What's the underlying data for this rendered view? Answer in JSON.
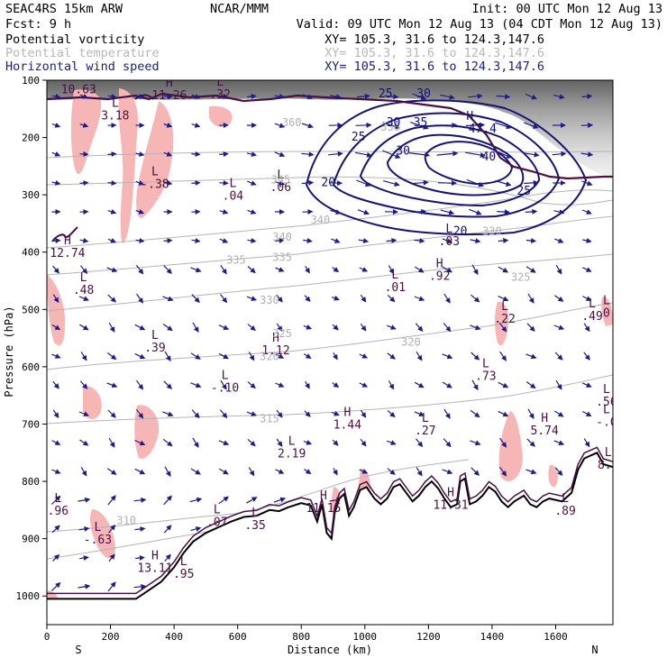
{
  "header": {
    "left_line1": "SEAC4RS 15km ARW",
    "center_line1": "NCAR/MMM",
    "right_line1": "Init: 00 UTC Mon 12 Aug 13",
    "fcst": "Fcst:     9 h",
    "valid": "Valid: 09 UTC Mon 12 Aug 13 (04 CDT Mon 12 Aug 13)",
    "fields": [
      {
        "name": "Potential vorticity",
        "xy": "XY= 105.3, 31.6 to 124.3,147.6"
      },
      {
        "name": "Potential temperature",
        "xy": "XY= 105.3, 31.6 to 124.3,147.6"
      },
      {
        "name": "Horizontal wind speed",
        "xy": "XY= 105.3, 31.6 to 124.3,147.6"
      }
    ]
  },
  "colors": {
    "pv_fill": "#f7b6b6",
    "pv_line": "#4a0f45",
    "theta": "#b4b4b4",
    "wind_contour": "#141478",
    "arrow": "#1c1c8c",
    "terrain": "#000000",
    "stratosphere_shade": "#7a7a7a"
  },
  "chart_data": {
    "type": "cross-section",
    "xlabel": "Distance (km)",
    "ylabel": "Pressure (hPa)",
    "xlim": [
      0,
      1780
    ],
    "ylim_hpa": [
      1050,
      100
    ],
    "x_ticks": [
      "0",
      "200",
      "400",
      "600",
      "800",
      "1000",
      "1200",
      "1400",
      "1600"
    ],
    "x_tick_values": [
      0,
      200,
      400,
      600,
      800,
      1000,
      1200,
      1400,
      1600
    ],
    "y_ticks": [
      "100",
      "200",
      "300",
      "400",
      "500",
      "600",
      "700",
      "800",
      "900",
      "1000"
    ],
    "y_tick_values": [
      100,
      200,
      300,
      400,
      500,
      600,
      700,
      800,
      900,
      1000
    ],
    "endpoints": {
      "left": "S",
      "right": "N"
    },
    "terrain": [
      [
        0,
        1005
      ],
      [
        280,
        1005
      ],
      [
        320,
        990
      ],
      [
        360,
        975
      ],
      [
        400,
        950
      ],
      [
        430,
        925
      ],
      [
        460,
        905
      ],
      [
        500,
        890
      ],
      [
        540,
        880
      ],
      [
        580,
        870
      ],
      [
        620,
        862
      ],
      [
        660,
        860
      ],
      [
        700,
        850
      ],
      [
        730,
        852
      ],
      [
        760,
        845
      ],
      [
        800,
        838
      ],
      [
        830,
        842
      ],
      [
        850,
        870
      ],
      [
        865,
        840
      ],
      [
        880,
        890
      ],
      [
        895,
        900
      ],
      [
        905,
        855
      ],
      [
        920,
        830
      ],
      [
        935,
        822
      ],
      [
        950,
        860
      ],
      [
        965,
        845
      ],
      [
        985,
        815
      ],
      [
        1005,
        810
      ],
      [
        1030,
        830
      ],
      [
        1050,
        840
      ],
      [
        1070,
        830
      ],
      [
        1090,
        810
      ],
      [
        1110,
        805
      ],
      [
        1130,
        820
      ],
      [
        1150,
        835
      ],
      [
        1170,
        825
      ],
      [
        1190,
        810
      ],
      [
        1210,
        800
      ],
      [
        1230,
        812
      ],
      [
        1250,
        830
      ],
      [
        1270,
        845
      ],
      [
        1290,
        840
      ],
      [
        1300,
        800
      ],
      [
        1315,
        795
      ],
      [
        1330,
        840
      ],
      [
        1350,
        835
      ],
      [
        1370,
        825
      ],
      [
        1390,
        810
      ],
      [
        1410,
        818
      ],
      [
        1430,
        835
      ],
      [
        1450,
        845
      ],
      [
        1470,
        835
      ],
      [
        1500,
        825
      ],
      [
        1520,
        840
      ],
      [
        1540,
        845
      ],
      [
        1560,
        835
      ],
      [
        1580,
        830
      ],
      [
        1620,
        835
      ],
      [
        1650,
        820
      ],
      [
        1670,
        780
      ],
      [
        1690,
        760
      ],
      [
        1710,
        755
      ],
      [
        1730,
        750
      ],
      [
        1750,
        770
      ],
      [
        1780,
        775
      ]
    ],
    "pv_labels": [
      {
        "t": "L",
        "v": "10.63",
        "x": 100,
        "p": 120
      },
      {
        "t": "H",
        "v": "11.26",
        "x": 385,
        "p": 130
      },
      {
        "t": "L",
        "v": ".32",
        "x": 545,
        "p": 128
      },
      {
        "t": "L",
        "v": "3.18",
        "x": 215,
        "p": 165
      },
      {
        "t": "L",
        "v": "-.38",
        "x": 340,
        "p": 285
      },
      {
        "t": "L",
        "v": ".04",
        "x": 585,
        "p": 305
      },
      {
        "t": "L",
        "v": ".06",
        "x": 735,
        "p": 290
      },
      {
        "t": "H",
        "v": "12.74",
        "x": 65,
        "p": 405
      },
      {
        "t": "L",
        "v": ".48",
        "x": 115,
        "p": 470
      },
      {
        "t": "L",
        "v": ".01",
        "x": 1095,
        "p": 465
      },
      {
        "t": "H",
        "v": ".92",
        "x": 1235,
        "p": 445
      },
      {
        "t": "L",
        "v": ".03",
        "x": 1265,
        "p": 385
      },
      {
        "t": "L",
        "v": ".22",
        "x": 1440,
        "p": 520
      },
      {
        "t": "L",
        "v": ".49",
        "x": 1715,
        "p": 515
      },
      {
        "t": "L",
        "v": "0",
        "x": 1760,
        "p": 510
      },
      {
        "t": "L",
        "v": ".39",
        "x": 340,
        "p": 570
      },
      {
        "t": "H",
        "v": "1.12",
        "x": 720,
        "p": 575
      },
      {
        "t": "L",
        "v": ".73",
        "x": 1380,
        "p": 620
      },
      {
        "t": "L",
        "v": "-.10",
        "x": 560,
        "p": 640
      },
      {
        "t": "H",
        "v": "1.44",
        "x": 945,
        "p": 705
      },
      {
        "t": "L",
        "v": ".27",
        "x": 1190,
        "p": 715
      },
      {
        "t": "H",
        "v": "5.74",
        "x": 1565,
        "p": 715
      },
      {
        "t": "L",
        "v": "-.0",
        "x": 1760,
        "p": 700
      },
      {
        "t": "L",
        "v": "2.19",
        "x": 770,
        "p": 755
      },
      {
        "t": "L",
        "v": ".56",
        "x": 1760,
        "p": 665
      },
      {
        "t": "L",
        "v": "8.9",
        "x": 1765,
        "p": 775
      },
      {
        "t": "H",
        "v": "11.15",
        "x": 870,
        "p": 850
      },
      {
        "t": "H",
        "v": "11.31",
        "x": 1270,
        "p": 845
      },
      {
        "t": "L",
        "v": ".96",
        "x": 35,
        "p": 855
      },
      {
        "t": "L",
        "v": ".07",
        "x": 535,
        "p": 875
      },
      {
        "t": "L",
        "v": ".35",
        "x": 655,
        "p": 880
      },
      {
        "t": "L",
        "v": ".89",
        "x": 1630,
        "p": 855
      },
      {
        "t": "L",
        "v": "-.63",
        "x": 160,
        "p": 905
      },
      {
        "t": "H",
        "v": "13.11",
        "x": 340,
        "p": 955
      },
      {
        "t": "L",
        "v": ".95",
        "x": 430,
        "p": 965
      }
    ],
    "theta_labels": [
      {
        "v": "310",
        "x": 250,
        "p": 875
      },
      {
        "v": "315",
        "x": 700,
        "p": 697
      },
      {
        "v": "320",
        "x": 700,
        "p": 588
      },
      {
        "v": "320",
        "x": 1145,
        "p": 563
      },
      {
        "v": "325",
        "x": 740,
        "p": 548
      },
      {
        "v": "325",
        "x": 1490,
        "p": 450
      },
      {
        "v": "330",
        "x": 700,
        "p": 490
      },
      {
        "v": "330",
        "x": 1400,
        "p": 370
      },
      {
        "v": "335",
        "x": 595,
        "p": 420
      },
      {
        "v": "335",
        "x": 740,
        "p": 415
      },
      {
        "v": "340",
        "x": 740,
        "p": 380
      },
      {
        "v": "340",
        "x": 860,
        "p": 350
      },
      {
        "v": "345",
        "x": 735,
        "p": 280
      },
      {
        "v": "360",
        "x": 770,
        "p": 180
      },
      {
        "v": "330",
        "x": 1080,
        "p": 188
      }
    ],
    "wind_labels": [
      {
        "v": "20",
        "x": 885,
        "p": 285
      },
      {
        "v": "25",
        "x": 980,
        "p": 205
      },
      {
        "v": "25",
        "x": 1065,
        "p": 130
      },
      {
        "v": "30",
        "x": 1185,
        "p": 130
      },
      {
        "v": "30",
        "x": 1090,
        "p": 180
      },
      {
        "v": "35",
        "x": 1175,
        "p": 180
      },
      {
        "v": "40",
        "x": 1390,
        "p": 240
      },
      {
        "v": "25",
        "x": 1500,
        "p": 300
      },
      {
        "v": "20",
        "x": 1300,
        "p": 370
      },
      {
        "v": "30",
        "x": 1120,
        "p": 230
      }
    ],
    "wind_max": {
      "t": "H",
      "v": "47.4",
      "x": 1370,
      "p": 185
    }
  }
}
